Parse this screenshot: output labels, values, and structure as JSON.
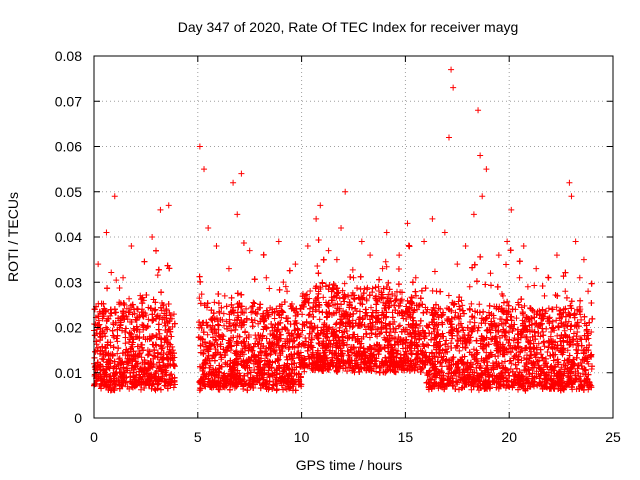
{
  "chart_data": {
    "type": "scatter",
    "title": "Day 347 of 2020, Rate Of TEC Index for receiver mayg",
    "xlabel": "GPS time / hours",
    "ylabel": "ROTI / TECUs",
    "xlim": [
      0,
      25
    ],
    "ylim": [
      0,
      0.08
    ],
    "x_ticks": [
      "0",
      "5",
      "10",
      "15",
      "20",
      "25"
    ],
    "y_ticks": [
      "0",
      "0.01",
      "0.02",
      "0.03",
      "0.04",
      "0.05",
      "0.06",
      "0.07",
      "0.08"
    ],
    "grid": true,
    "legend": "none",
    "marker": "plus",
    "color": "#ff0000",
    "data_gap_hours": [
      3.9,
      5.05
    ],
    "series": [
      {
        "x": [
          0.0,
          0.2,
          0.4,
          0.6,
          0.8,
          1.0,
          1.2,
          1.4,
          1.6,
          1.8,
          2.0,
          2.2,
          2.4,
          2.6,
          2.8,
          3.0,
          3.2,
          3.4,
          3.6,
          3.8,
          5.1,
          5.3,
          5.5,
          5.7,
          5.9,
          6.1,
          6.3,
          6.5,
          6.7,
          6.9,
          7.1,
          7.3,
          7.5,
          7.7,
          7.9,
          8.1,
          8.3,
          8.5,
          8.7,
          8.9,
          9.1,
          9.3,
          9.5,
          9.7,
          9.9,
          10.1,
          10.3,
          10.5,
          10.7,
          10.9,
          11.1,
          11.3,
          11.5,
          11.7,
          11.9,
          12.1,
          12.3,
          12.5,
          12.7,
          12.9,
          13.1,
          13.3,
          13.5,
          13.7,
          13.9,
          14.1,
          14.3,
          14.5,
          14.7,
          14.9,
          15.1,
          15.3,
          15.5,
          15.7,
          15.9,
          16.1,
          16.3,
          16.5,
          16.7,
          16.9,
          17.1,
          17.2,
          17.3,
          17.5,
          17.7,
          17.9,
          18.1,
          18.3,
          18.5,
          18.6,
          18.7,
          18.9,
          19.1,
          19.3,
          19.5,
          19.7,
          19.9,
          20.1,
          20.3,
          20.5,
          20.7,
          20.9,
          21.1,
          21.3,
          21.5,
          21.7,
          21.9,
          22.1,
          22.3,
          22.5,
          22.7,
          22.9,
          23.0,
          23.2,
          23.4,
          23.6,
          23.8,
          23.95
        ],
        "y": [
          0.012,
          0.034,
          0.018,
          0.041,
          0.016,
          0.049,
          0.013,
          0.031,
          0.011,
          0.038,
          0.014,
          0.019,
          0.026,
          0.012,
          0.04,
          0.016,
          0.046,
          0.021,
          0.047,
          0.015,
          0.06,
          0.055,
          0.042,
          0.019,
          0.038,
          0.014,
          0.027,
          0.033,
          0.052,
          0.045,
          0.054,
          0.016,
          0.037,
          0.012,
          0.024,
          0.018,
          0.031,
          0.014,
          0.022,
          0.039,
          0.016,
          0.028,
          0.013,
          0.034,
          0.018,
          0.025,
          0.038,
          0.019,
          0.044,
          0.047,
          0.021,
          0.037,
          0.026,
          0.035,
          0.042,
          0.05,
          0.021,
          0.031,
          0.018,
          0.039,
          0.024,
          0.036,
          0.016,
          0.029,
          0.033,
          0.041,
          0.019,
          0.027,
          0.036,
          0.022,
          0.043,
          0.018,
          0.031,
          0.025,
          0.039,
          0.02,
          0.044,
          0.028,
          0.018,
          0.041,
          0.062,
          0.077,
          0.073,
          0.034,
          0.026,
          0.038,
          0.029,
          0.045,
          0.068,
          0.058,
          0.049,
          0.055,
          0.032,
          0.021,
          0.036,
          0.027,
          0.039,
          0.046,
          0.024,
          0.031,
          0.038,
          0.029,
          0.022,
          0.033,
          0.018,
          0.027,
          0.031,
          0.024,
          0.036,
          0.021,
          0.028,
          0.052,
          0.049,
          0.039,
          0.031,
          0.035,
          0.028,
          0.019
        ]
      }
    ]
  }
}
